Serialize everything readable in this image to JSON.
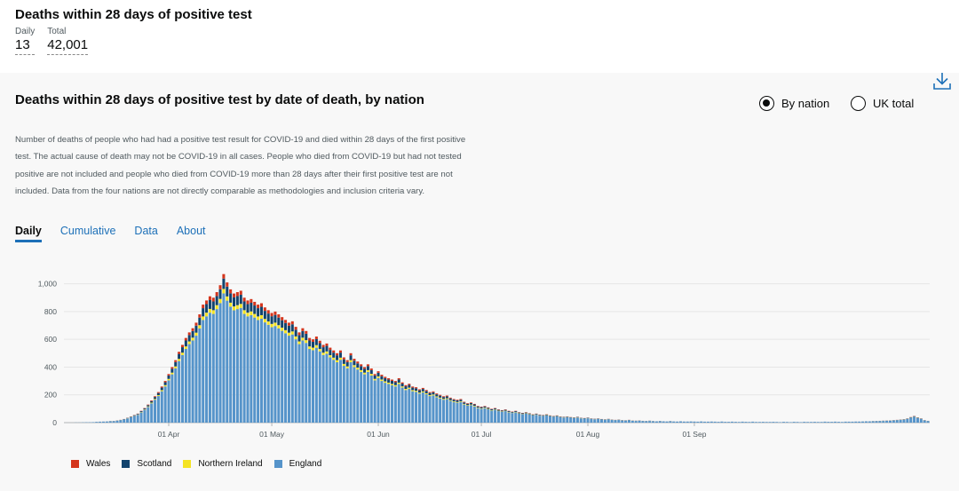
{
  "headline": {
    "title": "Deaths within 28 days of positive test",
    "daily_label": "Daily",
    "daily_value": "13",
    "total_label": "Total",
    "total_value": "42,001"
  },
  "card": {
    "title": "Deaths within 28 days of positive test by date of death, by nation",
    "toggle_by_nation": "By nation",
    "toggle_uk_total": "UK total",
    "selected": "By nation",
    "description": "Number of deaths of people who had had a positive test result for COVID-19 and died within 28 days of the first positive test. The actual cause of death may not be COVID-19 in all cases. People who died from COVID-19 but had not tested positive are not included and people who died from COVID-19 more than 28 days after their first positive test are not included. Data from the four nations are not directly comparable as methodologies and inclusion criteria vary.",
    "tabs": [
      "Daily",
      "Cumulative",
      "Data",
      "About"
    ],
    "active_tab": "Daily"
  },
  "colors": {
    "Wales": "#d4351c",
    "Scotland": "#12436d",
    "Northern Ireland": "#f4e323",
    "England": "#5694ca"
  },
  "chart_data": {
    "type": "bar",
    "stacked": true,
    "title": "Deaths within 28 days of positive test by date of death, by nation",
    "x_tick_labels": [
      "01 Apr",
      "01 May",
      "01 Jun",
      "01 Jul",
      "01 Aug",
      "01 Sep"
    ],
    "y_ticks": [
      0,
      200,
      400,
      600,
      800,
      1000
    ],
    "y_tick_labels": [
      "0",
      "200",
      "400",
      "600",
      "800",
      "1,000"
    ],
    "ylim": [
      0,
      1100
    ],
    "start_date": "2020-03-02",
    "series_order": [
      "England",
      "Northern Ireland",
      "Scotland",
      "Wales"
    ],
    "totals": [
      0,
      0,
      0,
      1,
      1,
      2,
      3,
      3,
      4,
      6,
      7,
      8,
      9,
      11,
      12,
      16,
      20,
      26,
      35,
      45,
      55,
      65,
      85,
      105,
      130,
      160,
      190,
      220,
      260,
      300,
      350,
      400,
      450,
      510,
      560,
      610,
      650,
      680,
      720,
      780,
      850,
      880,
      910,
      900,
      940,
      990,
      1070,
      1010,
      960,
      930,
      940,
      950,
      900,
      880,
      890,
      870,
      850,
      860,
      830,
      810,
      790,
      800,
      780,
      760,
      740,
      720,
      730,
      690,
      650,
      680,
      660,
      610,
      600,
      620,
      590,
      560,
      570,
      540,
      520,
      500,
      520,
      470,
      450,
      500,
      460,
      440,
      420,
      400,
      420,
      390,
      350,
      370,
      345,
      330,
      320,
      310,
      300,
      320,
      290,
      270,
      280,
      260,
      255,
      240,
      250,
      235,
      220,
      225,
      210,
      200,
      190,
      195,
      180,
      170,
      165,
      170,
      150,
      140,
      145,
      135,
      120,
      115,
      120,
      110,
      100,
      105,
      95,
      90,
      95,
      85,
      80,
      85,
      75,
      70,
      75,
      68,
      60,
      65,
      58,
      55,
      60,
      52,
      48,
      52,
      45,
      42,
      45,
      40,
      38,
      42,
      35,
      33,
      36,
      30,
      28,
      30,
      26,
      24,
      27,
      22,
      20,
      22,
      18,
      17,
      20,
      15,
      14,
      16,
      13,
      12,
      14,
      11,
      10,
      12,
      10,
      9,
      11,
      9,
      8,
      10,
      8,
      8,
      9,
      8,
      7,
      9,
      7,
      7,
      8,
      7,
      6,
      8,
      6,
      6,
      7,
      6,
      5,
      7,
      6,
      5,
      7,
      5,
      5,
      6,
      5,
      5,
      6,
      5,
      4,
      6,
      5,
      4,
      6,
      5,
      4,
      6,
      5,
      5,
      6,
      5,
      5,
      7,
      6,
      6,
      7,
      6,
      5,
      7,
      7,
      7,
      8,
      8,
      9,
      10,
      10,
      11,
      12,
      13,
      14,
      15,
      16,
      18,
      20,
      22,
      25,
      30,
      40,
      48,
      38,
      30,
      18,
      13
    ],
    "share": {
      "England": 0.87,
      "Northern Ireland": 0.03,
      "Scotland": 0.07,
      "Wales": 0.03
    },
    "legend": [
      "Wales",
      "Scotland",
      "Northern Ireland",
      "England"
    ]
  }
}
